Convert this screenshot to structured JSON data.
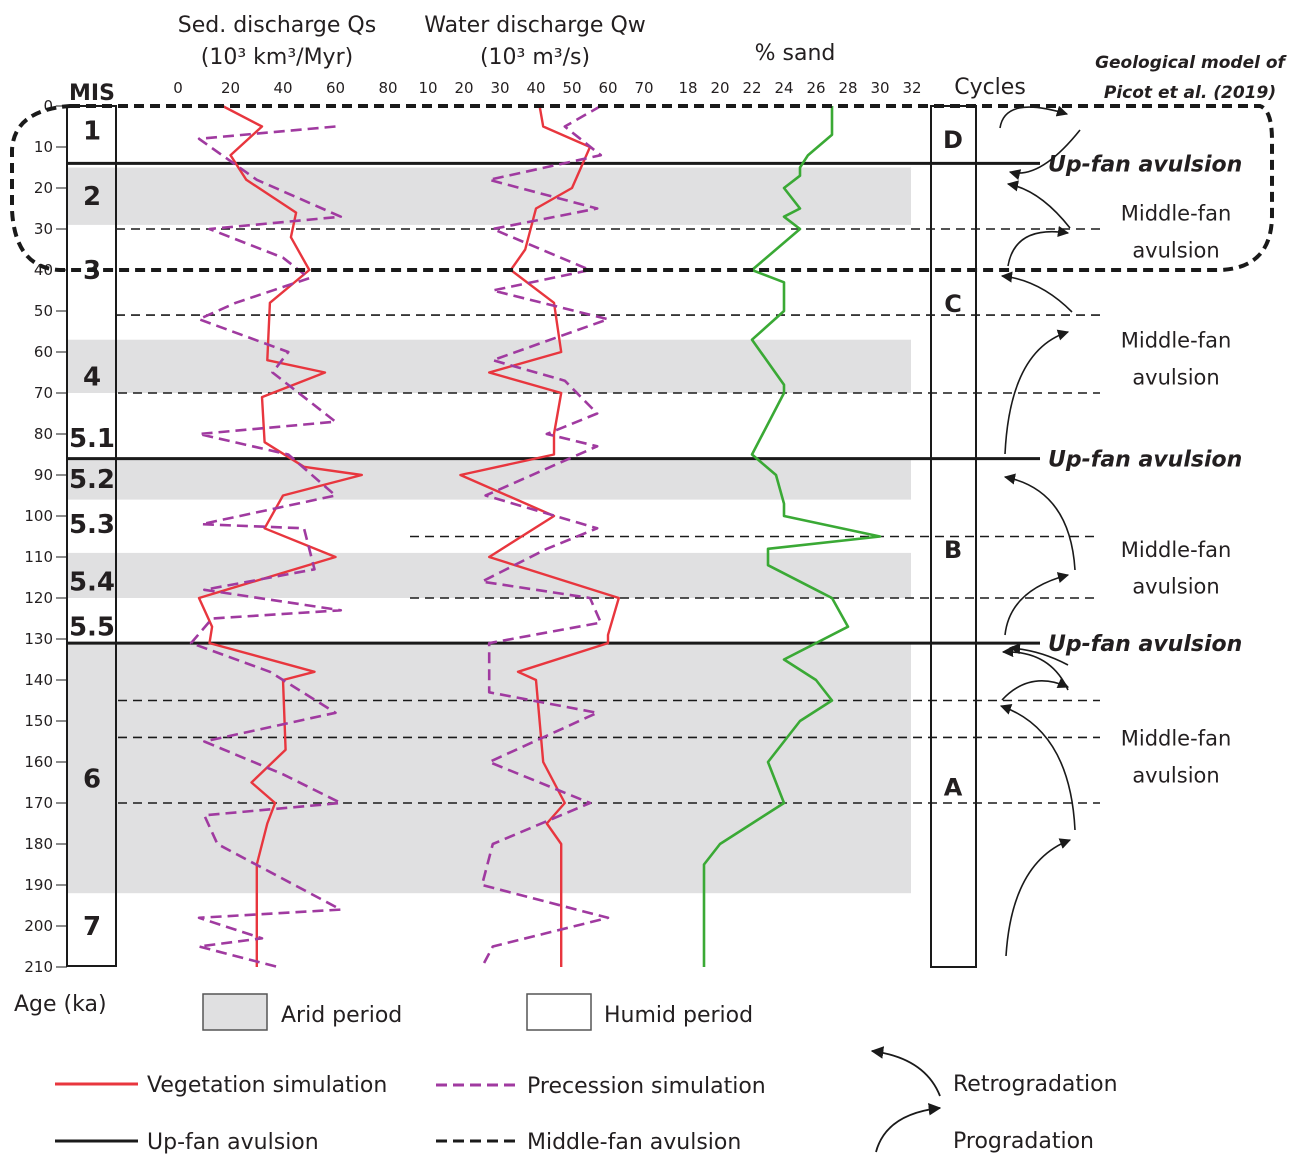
{
  "chart_data": {
    "type": "line",
    "y_axis": {
      "label": "Age (ka)",
      "range": [
        0,
        210
      ],
      "ticks": [
        "0",
        "10",
        "20",
        "30",
        "40",
        "50",
        "60",
        "70",
        "80",
        "90",
        "100",
        "110",
        "120",
        "130",
        "140",
        "150",
        "160",
        "170",
        "180",
        "190",
        "200",
        "210"
      ],
      "reversed": true
    },
    "panels": [
      {
        "id": "qs",
        "title_line1": "Sed. discharge Qs",
        "title_line2": "(10³ km³/Myr)",
        "xlim": [
          0,
          80
        ],
        "ticks": [
          "0",
          "20",
          "40",
          "60",
          "80"
        ],
        "series": [
          {
            "legend": "vegetation",
            "points": [
              [
                17,
                0
              ],
              [
                32,
                5
              ],
              [
                20,
                12
              ],
              [
                26,
                18
              ],
              [
                45,
                26
              ],
              [
                43,
                32
              ],
              [
                50,
                40
              ],
              [
                35,
                48
              ],
              [
                34,
                62
              ],
              [
                56,
                65
              ],
              [
                32,
                71
              ],
              [
                33,
                82
              ],
              [
                48,
                88
              ],
              [
                70,
                90
              ],
              [
                40,
                95
              ],
              [
                33,
                103
              ],
              [
                60,
                110
              ],
              [
                8,
                120
              ],
              [
                13,
                127
              ],
              [
                12,
                131
              ],
              [
                52,
                138
              ],
              [
                40,
                140
              ],
              [
                41,
                157
              ],
              [
                28,
                165
              ],
              [
                37,
                170
              ],
              [
                34,
                175
              ],
              [
                30,
                185
              ],
              [
                30,
                210
              ]
            ]
          },
          {
            "legend": "precession",
            "points": [
              [
                60,
                5
              ],
              [
                8,
                8
              ],
              [
                30,
                18
              ],
              [
                62,
                27
              ],
              [
                12,
                30
              ],
              [
                40,
                37
              ],
              [
                50,
                42
              ],
              [
                22,
                48
              ],
              [
                8,
                52
              ],
              [
                42,
                60
              ],
              [
                36,
                65
              ],
              [
                60,
                77
              ],
              [
                8,
                80
              ],
              [
                42,
                85
              ],
              [
                60,
                95
              ],
              [
                9,
                102
              ],
              [
                48,
                103
              ],
              [
                52,
                113
              ],
              [
                10,
                118
              ],
              [
                62,
                123
              ],
              [
                13,
                125
              ],
              [
                5,
                131
              ],
              [
                35,
                138
              ],
              [
                60,
                148
              ],
              [
                10,
                155
              ],
              [
                40,
                163
              ],
              [
                62,
                170
              ],
              [
                10,
                173
              ],
              [
                15,
                180
              ],
              [
                62,
                196
              ],
              [
                8,
                198
              ],
              [
                32,
                203
              ],
              [
                8,
                205
              ],
              [
                38,
                210
              ]
            ]
          }
        ]
      },
      {
        "id": "qw",
        "title_line1": "Water discharge Qw",
        "title_line2": "(10³ m³/s)",
        "xlim": [
          10,
          70
        ],
        "ticks": [
          "10",
          "20",
          "30",
          "40",
          "50",
          "60",
          "70"
        ],
        "series": [
          {
            "legend": "vegetation",
            "points": [
              [
                41,
                0
              ],
              [
                42,
                5
              ],
              [
                55,
                10
              ],
              [
                50,
                20
              ],
              [
                40,
                25
              ],
              [
                37,
                35
              ],
              [
                33,
                40
              ],
              [
                45,
                48
              ],
              [
                47,
                60
              ],
              [
                27,
                65
              ],
              [
                47,
                70
              ],
              [
                45,
                80
              ],
              [
                45,
                85
              ],
              [
                19,
                90
              ],
              [
                45,
                100
              ],
              [
                27,
                110
              ],
              [
                63,
                120
              ],
              [
                60,
                129
              ],
              [
                60,
                131
              ],
              [
                35,
                138
              ],
              [
                40,
                140
              ],
              [
                42,
                160
              ],
              [
                48,
                170
              ],
              [
                43,
                175
              ],
              [
                47,
                180
              ],
              [
                47,
                210
              ]
            ]
          },
          {
            "legend": "precession",
            "points": [
              [
                58,
                0
              ],
              [
                48,
                5
              ],
              [
                58,
                12
              ],
              [
                27,
                18
              ],
              [
                57,
                25
              ],
              [
                28,
                30
              ],
              [
                55,
                40
              ],
              [
                28,
                45
              ],
              [
                60,
                52
              ],
              [
                28,
                62
              ],
              [
                48,
                67
              ],
              [
                57,
                75
              ],
              [
                43,
                80
              ],
              [
                57,
                83
              ],
              [
                26,
                95
              ],
              [
                57,
                103
              ],
              [
                43,
                108
              ],
              [
                25,
                116
              ],
              [
                55,
                120
              ],
              [
                58,
                126
              ],
              [
                27,
                131
              ],
              [
                27,
                143
              ],
              [
                57,
                148
              ],
              [
                27,
                160
              ],
              [
                55,
                170
              ],
              [
                28,
                180
              ],
              [
                25,
                190
              ],
              [
                60,
                198
              ],
              [
                28,
                205
              ],
              [
                25,
                210
              ]
            ]
          }
        ]
      },
      {
        "id": "sand",
        "title": "% sand",
        "xlim": [
          18,
          32
        ],
        "ticks": [
          "18",
          "20",
          "22",
          "24",
          "26",
          "28",
          "30",
          "32"
        ],
        "series": [
          {
            "legend": "sand",
            "points": [
              [
                27,
                0
              ],
              [
                27,
                7
              ],
              [
                25.5,
                12
              ],
              [
                25,
                15
              ],
              [
                25,
                17
              ],
              [
                24,
                20
              ],
              [
                25,
                25
              ],
              [
                24,
                27
              ],
              [
                25,
                30
              ],
              [
                22,
                40
              ],
              [
                24,
                43
              ],
              [
                24,
                50
              ],
              [
                22,
                57
              ],
              [
                24,
                68
              ],
              [
                24,
                70
              ],
              [
                22,
                85
              ],
              [
                23.5,
                90
              ],
              [
                24,
                97
              ],
              [
                24,
                100
              ],
              [
                30,
                105
              ],
              [
                23,
                108
              ],
              [
                23,
                112
              ],
              [
                26,
                118
              ],
              [
                27,
                120
              ],
              [
                28,
                127
              ],
              [
                24,
                135
              ],
              [
                26,
                140
              ],
              [
                27,
                145
              ],
              [
                25,
                150
              ],
              [
                24,
                155
              ],
              [
                23,
                160
              ],
              [
                24,
                170
              ],
              [
                20,
                180
              ],
              [
                19,
                185
              ],
              [
                19,
                210
              ]
            ]
          }
        ]
      }
    ],
    "mis": [
      {
        "label": "1",
        "y": 6
      },
      {
        "label": "2",
        "y": 22
      },
      {
        "label": "3",
        "y": 40
      },
      {
        "label": "4",
        "y": 66
      },
      {
        "label": "5.1",
        "y": 81
      },
      {
        "label": "5.2",
        "y": 91
      },
      {
        "label": "5.3",
        "y": 102
      },
      {
        "label": "5.4",
        "y": 116
      },
      {
        "label": "5.5",
        "y": 127
      },
      {
        "label": "6",
        "y": 164
      },
      {
        "label": "7",
        "y": 200
      }
    ],
    "arid_bands": [
      [
        15,
        29
      ],
      [
        57,
        70
      ],
      [
        86,
        96
      ],
      [
        109,
        120
      ],
      [
        131,
        192
      ]
    ],
    "up_fan_lines": [
      14,
      86,
      131
    ],
    "middle_fan_lines": [
      {
        "y": 30,
        "x_from": "col"
      },
      {
        "y": 51,
        "x_from": "col"
      },
      {
        "y": 70,
        "x_from": "qs"
      },
      {
        "y": 105,
        "x_from": "qw"
      },
      {
        "y": 120,
        "x_from": "qw"
      },
      {
        "y": 145,
        "x_from": "qs"
      },
      {
        "y": 154,
        "x_from": "qs"
      },
      {
        "y": 170,
        "x_from": "qs"
      }
    ],
    "cycles": [
      {
        "label": "D",
        "y": 8
      },
      {
        "label": "C",
        "y": 48
      },
      {
        "label": "B",
        "y": 108
      },
      {
        "label": "A",
        "y": 166
      }
    ],
    "events": [
      {
        "text": "Up-fan avulsion",
        "y": 14,
        "bold": true
      },
      {
        "text": "Middle-fan",
        "y": 26,
        "bold": false
      },
      {
        "text": "avulsion",
        "y": 35,
        "bold": false
      },
      {
        "text": "Middle-fan",
        "y": 57,
        "bold": false
      },
      {
        "text": "avulsion",
        "y": 66,
        "bold": false
      },
      {
        "text": "Up-fan avulsion",
        "y": 86,
        "bold": true
      },
      {
        "text": "Middle-fan",
        "y": 108,
        "bold": false
      },
      {
        "text": "avulsion",
        "y": 117,
        "bold": false
      },
      {
        "text": "Up-fan avulsion",
        "y": 131,
        "bold": true
      },
      {
        "text": "Middle-fan",
        "y": 154,
        "bold": false
      },
      {
        "text": "avulsion",
        "y": 163,
        "bold": false
      }
    ],
    "arrows": [
      {
        "type": "retro",
        "from": [
          1080,
          130
        ],
        "ctrl": [
          1040,
          180
        ],
        "to": [
          1010,
          172
        ]
      },
      {
        "type": "retro",
        "from": [
          1070,
          228
        ],
        "ctrl": [
          1040,
          190
        ],
        "to": [
          1008,
          184
        ]
      },
      {
        "type": "prog",
        "from": [
          1008,
          266
        ],
        "ctrl": [
          1015,
          225
        ],
        "to": [
          1068,
          233
        ]
      },
      {
        "type": "prog",
        "from": [
          1000,
          128
        ],
        "ctrl": [
          1005,
          95
        ],
        "to": [
          1067,
          114
        ]
      },
      {
        "type": "retro",
        "from": [
          1072,
          312
        ],
        "ctrl": [
          1040,
          280
        ],
        "to": [
          1002,
          276
        ]
      },
      {
        "type": "prog",
        "from": [
          1005,
          454
        ],
        "ctrl": [
          1010,
          350
        ],
        "to": [
          1068,
          332
        ]
      },
      {
        "type": "retro",
        "from": [
          1075,
          570
        ],
        "ctrl": [
          1070,
          490
        ],
        "to": [
          1005,
          477
        ]
      },
      {
        "type": "prog",
        "from": [
          1005,
          635
        ],
        "ctrl": [
          1010,
          590
        ],
        "to": [
          1068,
          575
        ]
      },
      {
        "type": "retro",
        "from": [
          1068,
          665
        ],
        "ctrl": [
          1040,
          650
        ],
        "to": [
          1010,
          648
        ]
      },
      {
        "type": "retro",
        "from": [
          1068,
          690
        ],
        "ctrl": [
          1050,
          650
        ],
        "to": [
          1003,
          652
        ]
      },
      {
        "type": "prog",
        "from": [
          1002,
          700
        ],
        "ctrl": [
          1030,
          670
        ],
        "to": [
          1068,
          687
        ]
      },
      {
        "type": "retro",
        "from": [
          1075,
          830
        ],
        "ctrl": [
          1070,
          730
        ],
        "to": [
          1001,
          706
        ]
      },
      {
        "type": "prog",
        "from": [
          1006,
          956
        ],
        "ctrl": [
          1012,
          862
        ],
        "to": [
          1070,
          840
        ]
      }
    ],
    "labels": {
      "mis_header": "MIS",
      "cycles_header": "Cycles",
      "model_line1": "Geological model of",
      "model_line2": "Picot et al. (2019)",
      "age": "Age (ka)"
    },
    "legend": {
      "arid": "Arid period",
      "humid": "Humid period",
      "vegetation": "Vegetation simulation",
      "precession": "Precession simulation",
      "upfan": "Up-fan avulsion",
      "middlefan": "Middle-fan avulsion",
      "retro": "Retrogradation",
      "prog": "Progradation"
    },
    "colors": {
      "vegetation": "#e8363e",
      "precession": "#a03aa0",
      "sand": "#3aa935",
      "arid": "#e0e0e1",
      "lines": "#1a1a1a"
    }
  }
}
